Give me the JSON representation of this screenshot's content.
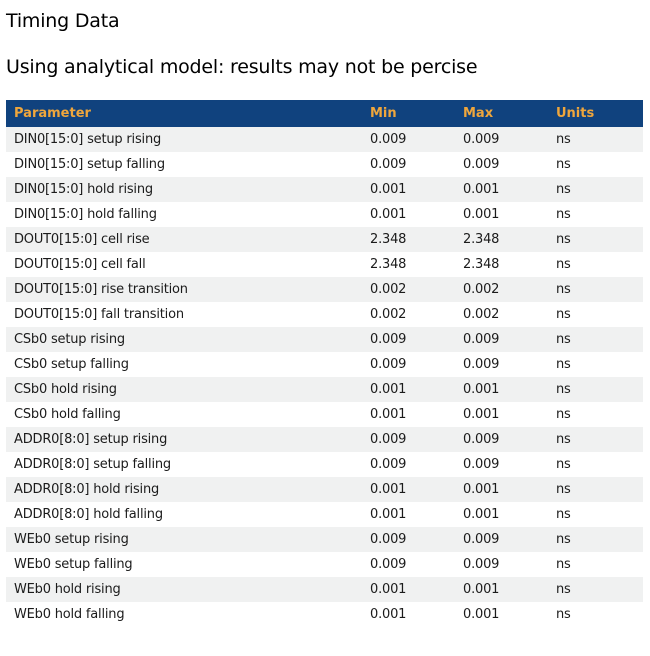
{
  "page": {
    "title": "Timing Data",
    "subtitle": "Using analytical model: results may not be percise"
  },
  "colors": {
    "header_bg": "#10427e",
    "header_text": "#efa63c",
    "row_alt_bg": "#f0f1f1",
    "body_text": "#1b1b1b"
  },
  "table": {
    "columns": [
      "Parameter",
      "Min",
      "Max",
      "Units"
    ],
    "rows": [
      {
        "parameter": "DIN0[15:0] setup rising",
        "min": "0.009",
        "max": "0.009",
        "units": "ns"
      },
      {
        "parameter": "DIN0[15:0] setup falling",
        "min": "0.009",
        "max": "0.009",
        "units": "ns"
      },
      {
        "parameter": "DIN0[15:0] hold rising",
        "min": "0.001",
        "max": "0.001",
        "units": "ns"
      },
      {
        "parameter": "DIN0[15:0] hold falling",
        "min": "0.001",
        "max": "0.001",
        "units": "ns"
      },
      {
        "parameter": "DOUT0[15:0] cell rise",
        "min": "2.348",
        "max": "2.348",
        "units": "ns"
      },
      {
        "parameter": "DOUT0[15:0] cell fall",
        "min": "2.348",
        "max": "2.348",
        "units": "ns"
      },
      {
        "parameter": "DOUT0[15:0] rise transition",
        "min": "0.002",
        "max": "0.002",
        "units": "ns"
      },
      {
        "parameter": "DOUT0[15:0] fall transition",
        "min": "0.002",
        "max": "0.002",
        "units": "ns"
      },
      {
        "parameter": "CSb0 setup rising",
        "min": "0.009",
        "max": "0.009",
        "units": "ns"
      },
      {
        "parameter": "CSb0 setup falling",
        "min": "0.009",
        "max": "0.009",
        "units": "ns"
      },
      {
        "parameter": "CSb0 hold rising",
        "min": "0.001",
        "max": "0.001",
        "units": "ns"
      },
      {
        "parameter": "CSb0 hold falling",
        "min": "0.001",
        "max": "0.001",
        "units": "ns"
      },
      {
        "parameter": "ADDR0[8:0] setup rising",
        "min": "0.009",
        "max": "0.009",
        "units": "ns"
      },
      {
        "parameter": "ADDR0[8:0] setup falling",
        "min": "0.009",
        "max": "0.009",
        "units": "ns"
      },
      {
        "parameter": "ADDR0[8:0] hold rising",
        "min": "0.001",
        "max": "0.001",
        "units": "ns"
      },
      {
        "parameter": "ADDR0[8:0] hold falling",
        "min": "0.001",
        "max": "0.001",
        "units": "ns"
      },
      {
        "parameter": "WEb0 setup rising",
        "min": "0.009",
        "max": "0.009",
        "units": "ns"
      },
      {
        "parameter": "WEb0 setup falling",
        "min": "0.009",
        "max": "0.009",
        "units": "ns"
      },
      {
        "parameter": "WEb0 hold rising",
        "min": "0.001",
        "max": "0.001",
        "units": "ns"
      },
      {
        "parameter": "WEb0 hold falling",
        "min": "0.001",
        "max": "0.001",
        "units": "ns"
      }
    ]
  }
}
